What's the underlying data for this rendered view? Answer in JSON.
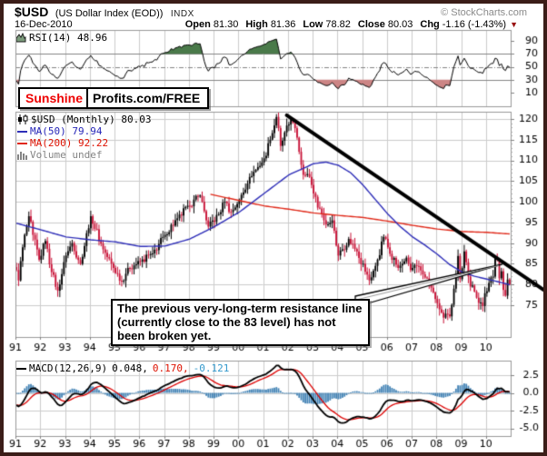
{
  "header": {
    "symbol": "$USD",
    "name": "(US Dollar Index (EOD))",
    "exchange": "INDX",
    "credit": "© StockCharts.com",
    "date": "16-Dec-2010",
    "quote": {
      "open_label": "Open",
      "open": "81.30",
      "high_label": "High",
      "high": "81.36",
      "low_label": "Low",
      "low": "78.82",
      "close_label": "Close",
      "close": "80.03",
      "chg_label": "Chg",
      "chg": "-1.16 (-1.43%)"
    }
  },
  "badge": {
    "brand": "Sunshine",
    "suffix": "Profits.com/FREE"
  },
  "panels": {
    "rsi": {
      "legend": "RSI(14) 48.96"
    },
    "main": {
      "legend_symbol": "$USD (Monthly) 80.03",
      "legend_ma50": "MA(50) 79.94",
      "legend_ma200": "MA(200) 92.22",
      "legend_volume": "Volume undef"
    },
    "macd": {
      "label": "MACD(12,26,9)",
      "v1": "0.048,",
      "v2": "0.170,",
      "v3": "-0.121"
    }
  },
  "annotation": {
    "text": "The previous very-long-term resistance line (currently close to the 83 level) has not been broken yet."
  },
  "chart_data": {
    "type": "candlestick",
    "timeframe": "Monthly",
    "x_years": [
      "91",
      "92",
      "93",
      "94",
      "95",
      "96",
      "97",
      "98",
      "99",
      "00",
      "01",
      "02",
      "03",
      "04",
      "05",
      "06",
      "07",
      "08",
      "09",
      "10"
    ],
    "months_per_year": 12,
    "price_axis": {
      "ticks": [
        120,
        115,
        110,
        105,
        100,
        95,
        90,
        85,
        80,
        75
      ],
      "minor_step": 1
    },
    "rsi_axis": {
      "ticks": [
        90,
        70,
        50,
        30,
        10
      ],
      "upper": 70,
      "mid": 50,
      "lower": 30,
      "last": 48.96
    },
    "macd_axis": {
      "ticks": [
        2.5,
        0.0,
        -2.5,
        -5.0
      ],
      "last_macd": 0.048,
      "last_signal": 0.17,
      "last_hist": -0.121
    },
    "last_close": 80.03,
    "last_ma50": 79.94,
    "last_ma200": 92.22,
    "close_anchors": [
      [
        0,
        83.5
      ],
      [
        1,
        81.0
      ],
      [
        3,
        89.0
      ],
      [
        6,
        96.5
      ],
      [
        8,
        92.0
      ],
      [
        11,
        86.0
      ],
      [
        14,
        90.5
      ],
      [
        17,
        83.0
      ],
      [
        20,
        78.5
      ],
      [
        24,
        87.0
      ],
      [
        27,
        90.0
      ],
      [
        31,
        85.0
      ],
      [
        36,
        96.5
      ],
      [
        42,
        88.5
      ],
      [
        47,
        84.0
      ],
      [
        51,
        80.8
      ],
      [
        54,
        84.0
      ],
      [
        60,
        85.5
      ],
      [
        66,
        87.5
      ],
      [
        72,
        92.0
      ],
      [
        78,
        96.0
      ],
      [
        84,
        99.0
      ],
      [
        89,
        101.5
      ],
      [
        93,
        94.0
      ],
      [
        98,
        97.0
      ],
      [
        101,
        100.0
      ],
      [
        104,
        97.5
      ],
      [
        108,
        100.5
      ],
      [
        113,
        106.0
      ],
      [
        119,
        109.5
      ],
      [
        120,
        110.5
      ],
      [
        123,
        115.0
      ],
      [
        126,
        120.5
      ],
      [
        128,
        113.5
      ],
      [
        133,
        120.0
      ],
      [
        136,
        115.5
      ],
      [
        139,
        106.5
      ],
      [
        142,
        106.0
      ],
      [
        144,
        102.0
      ],
      [
        150,
        94.5
      ],
      [
        153,
        95.5
      ],
      [
        156,
        87.0
      ],
      [
        158,
        88.5
      ],
      [
        161,
        91.0
      ],
      [
        165,
        88.0
      ],
      [
        171,
        81.0
      ],
      [
        174,
        84.5
      ],
      [
        178,
        91.5
      ],
      [
        180,
        89.0
      ],
      [
        185,
        84.0
      ],
      [
        189,
        86.5
      ],
      [
        191,
        83.5
      ],
      [
        194,
        84.5
      ],
      [
        199,
        81.5
      ],
      [
        203,
        76.5
      ],
      [
        204,
        75.5
      ],
      [
        207,
        72.0
      ],
      [
        210,
        72.3
      ],
      [
        212,
        79.0
      ],
      [
        214,
        86.9
      ],
      [
        215,
        81.3
      ],
      [
        217,
        88.0
      ],
      [
        218,
        85.4
      ],
      [
        220,
        79.5
      ],
      [
        222,
        78.3
      ],
      [
        226,
        74.8
      ],
      [
        227,
        77.9
      ],
      [
        229,
        80.4
      ],
      [
        231,
        81.9
      ],
      [
        232,
        86.6
      ],
      [
        233,
        86.0
      ],
      [
        234,
        81.5
      ],
      [
        235,
        83.2
      ],
      [
        236,
        78.7
      ],
      [
        237,
        77.3
      ],
      [
        238,
        81.2
      ],
      [
        239,
        80.03
      ]
    ],
    "ma50_anchors": [
      [
        0,
        94.8
      ],
      [
        12,
        93.2
      ],
      [
        24,
        91.5
      ],
      [
        36,
        90.8
      ],
      [
        48,
        90.3
      ],
      [
        60,
        89.2
      ],
      [
        72,
        89.3
      ],
      [
        84,
        91.0
      ],
      [
        96,
        94.0
      ],
      [
        108,
        97.5
      ],
      [
        120,
        102.0
      ],
      [
        132,
        106.5
      ],
      [
        144,
        109.2
      ],
      [
        150,
        109.6
      ],
      [
        156,
        108.8
      ],
      [
        162,
        107.0
      ],
      [
        168,
        104.0
      ],
      [
        174,
        100.5
      ],
      [
        180,
        97.0
      ],
      [
        186,
        94.0
      ],
      [
        192,
        91.5
      ],
      [
        198,
        89.5
      ],
      [
        204,
        87.3
      ],
      [
        210,
        84.8
      ],
      [
        216,
        83.0
      ],
      [
        222,
        82.0
      ],
      [
        228,
        81.3
      ],
      [
        234,
        80.6
      ],
      [
        239,
        79.94
      ]
    ],
    "ma200_anchors": [
      [
        94,
        101.8
      ],
      [
        108,
        100.3
      ],
      [
        120,
        99.0
      ],
      [
        132,
        98.2
      ],
      [
        144,
        97.3
      ],
      [
        156,
        96.7
      ],
      [
        168,
        96.2
      ],
      [
        180,
        95.3
      ],
      [
        192,
        94.3
      ],
      [
        204,
        93.4
      ],
      [
        216,
        92.8
      ],
      [
        228,
        92.6
      ],
      [
        239,
        92.22
      ]
    ],
    "prehistory": {
      "months": 48,
      "from": 100.0,
      "to": 84.0
    },
    "trendline": {
      "t1": 131,
      "p1": 120.9,
      "t2": 255.5,
      "p2": 78.7
    },
    "callout_tip": {
      "t": 235.5,
      "p": 84.9
    },
    "macd_scale": 0.78,
    "colors": {
      "up": "#000000",
      "down": "#c81136",
      "ma50": "#2e2eb8",
      "ma200": "#e02818",
      "trendline": "#000000",
      "rsi_line": "#000000",
      "rsi_over": "#4a7a4a",
      "rsi_under": "#cc8585",
      "macd_line": "#000000",
      "macd_signal": "#dd0000",
      "macd_hist": "#4383b5",
      "grid": "#cccccc",
      "grid_dark": "#848484",
      "panel_border": "#999999",
      "axis_text": "#000000"
    }
  }
}
